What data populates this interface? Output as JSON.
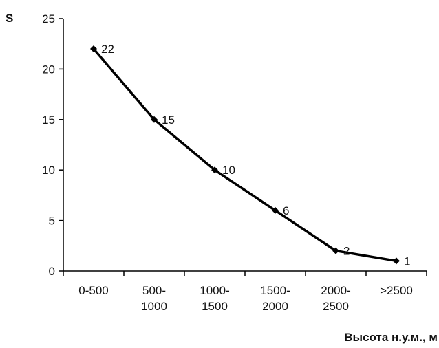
{
  "chart_data": {
    "type": "line",
    "categories": [
      "0-500",
      "500-\n1000",
      "1000-\n1500",
      "1500-\n2000",
      "2000-\n2500",
      ">2500"
    ],
    "values": [
      22,
      15,
      10,
      6,
      2,
      1
    ],
    "data_labels": [
      "22",
      "15",
      "10",
      "6",
      "2",
      "1"
    ],
    "ylabel": "S",
    "xlabel": "Высота н.у.м., м",
    "ylim": [
      0,
      25
    ],
    "yticks": [
      0,
      5,
      10,
      15,
      20,
      25
    ],
    "grid": false,
    "legend": "none",
    "marker": "diamond",
    "line_color": "#000000"
  }
}
